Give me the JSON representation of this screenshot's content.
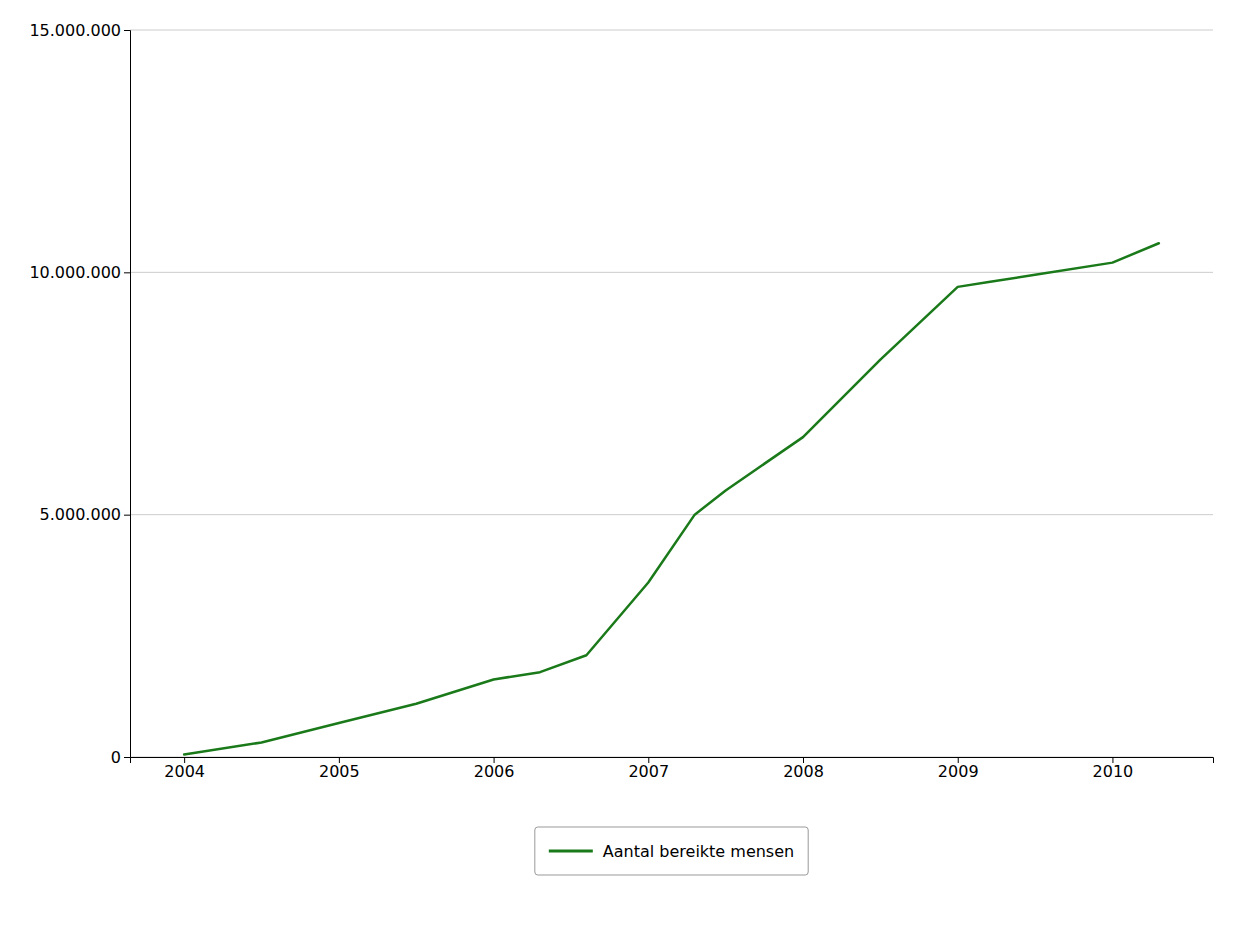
{
  "chart_data": {
    "type": "line",
    "x": [
      2004,
      2004.5,
      2005,
      2005.5,
      2006,
      2006.3,
      2006.6,
      2007,
      2007.3,
      2007.5,
      2008,
      2008.5,
      2009,
      2009.2,
      2009.5,
      2010,
      2010.3
    ],
    "series": [
      {
        "name": "Aantal bereikte mensen",
        "color": "#1a7a1a",
        "values": [
          50000,
          300000,
          700000,
          1100000,
          1600000,
          1750000,
          2100000,
          3600000,
          5000000,
          5500000,
          6600000,
          8200000,
          9700000,
          9800000,
          9950000,
          10200000,
          10600000
        ]
      }
    ],
    "xlim": [
      2003.65,
      2010.65
    ],
    "xticks": [
      2004,
      2005,
      2006,
      2007,
      2008,
      2009,
      2010
    ],
    "ylim": [
      0,
      15000000
    ],
    "yticks": [
      0,
      {
        "value": 5000000,
        "label": "5.000.000"
      },
      {
        "value": 10000000,
        "label": "10.000.000"
      },
      {
        "value": 15000000,
        "label": "15.000.000"
      }
    ],
    "grid": "y",
    "legend": "bottom"
  }
}
